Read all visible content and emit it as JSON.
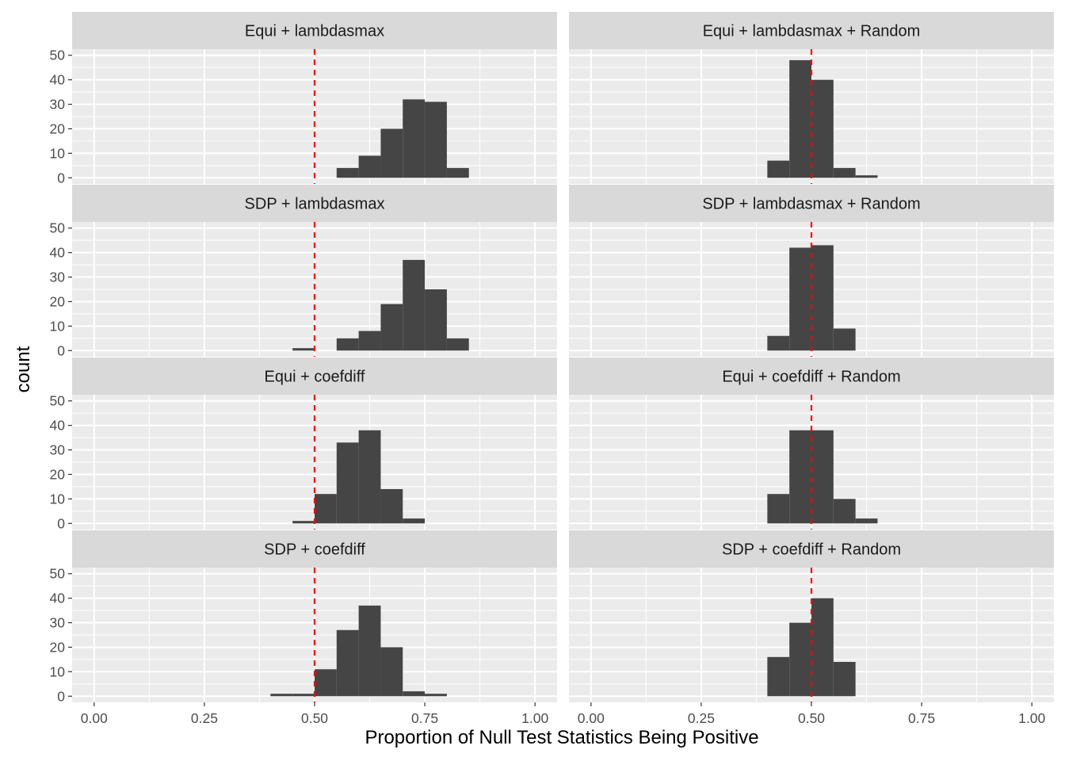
{
  "chart_data": {
    "type": "bar",
    "facet_layout": {
      "rows": 4,
      "cols": 2
    },
    "xlabel": "Proportion of Null Test Statistics Being Positive",
    "ylabel": "count",
    "xlim": [
      -0.05,
      1.05
    ],
    "ylim": [
      -2.5,
      52.5
    ],
    "x_ticks": [
      0.0,
      0.25,
      0.5,
      0.75,
      1.0
    ],
    "x_tick_labels": [
      "0.00",
      "0.25",
      "0.50",
      "0.75",
      "1.00"
    ],
    "y_ticks": [
      0,
      10,
      20,
      30,
      40,
      50
    ],
    "y_tick_labels": [
      "0",
      "10",
      "20",
      "30",
      "40",
      "50"
    ],
    "bin_width": 0.05,
    "reference_line": {
      "x": 0.5,
      "style": "dashed",
      "color": "#ff0000"
    },
    "colors": {
      "panel_bg": "#ebebeb",
      "strip_bg": "#d9d9d9",
      "bar": "#454545",
      "grid": "#ffffff"
    },
    "panels": [
      {
        "title": "Equi + lambdasmax",
        "bins": [
          {
            "x": 0.575,
            "count": 4
          },
          {
            "x": 0.625,
            "count": 9
          },
          {
            "x": 0.675,
            "count": 20
          },
          {
            "x": 0.725,
            "count": 32
          },
          {
            "x": 0.775,
            "count": 31
          },
          {
            "x": 0.825,
            "count": 4
          }
        ]
      },
      {
        "title": "Equi + lambdasmax + Random",
        "bins": [
          {
            "x": 0.425,
            "count": 7
          },
          {
            "x": 0.475,
            "count": 48
          },
          {
            "x": 0.525,
            "count": 40
          },
          {
            "x": 0.575,
            "count": 4
          },
          {
            "x": 0.625,
            "count": 1
          }
        ]
      },
      {
        "title": "SDP + lambdasmax",
        "bins": [
          {
            "x": 0.475,
            "count": 1
          },
          {
            "x": 0.575,
            "count": 5
          },
          {
            "x": 0.625,
            "count": 8
          },
          {
            "x": 0.675,
            "count": 19
          },
          {
            "x": 0.725,
            "count": 37
          },
          {
            "x": 0.775,
            "count": 25
          },
          {
            "x": 0.825,
            "count": 5
          }
        ]
      },
      {
        "title": "SDP + lambdasmax + Random",
        "bins": [
          {
            "x": 0.425,
            "count": 6
          },
          {
            "x": 0.475,
            "count": 42
          },
          {
            "x": 0.525,
            "count": 43
          },
          {
            "x": 0.575,
            "count": 9
          }
        ]
      },
      {
        "title": "Equi + coefdiff",
        "bins": [
          {
            "x": 0.475,
            "count": 1
          },
          {
            "x": 0.525,
            "count": 12
          },
          {
            "x": 0.575,
            "count": 33
          },
          {
            "x": 0.625,
            "count": 38
          },
          {
            "x": 0.675,
            "count": 14
          },
          {
            "x": 0.725,
            "count": 2
          }
        ]
      },
      {
        "title": "Equi + coefdiff + Random",
        "bins": [
          {
            "x": 0.425,
            "count": 12
          },
          {
            "x": 0.475,
            "count": 38
          },
          {
            "x": 0.525,
            "count": 38
          },
          {
            "x": 0.575,
            "count": 10
          },
          {
            "x": 0.625,
            "count": 2
          }
        ]
      },
      {
        "title": "SDP + coefdiff",
        "bins": [
          {
            "x": 0.425,
            "count": 1
          },
          {
            "x": 0.475,
            "count": 1
          },
          {
            "x": 0.525,
            "count": 11
          },
          {
            "x": 0.575,
            "count": 27
          },
          {
            "x": 0.625,
            "count": 37
          },
          {
            "x": 0.675,
            "count": 20
          },
          {
            "x": 0.725,
            "count": 2
          },
          {
            "x": 0.775,
            "count": 1
          }
        ]
      },
      {
        "title": "SDP + coefdiff + Random",
        "bins": [
          {
            "x": 0.425,
            "count": 16
          },
          {
            "x": 0.475,
            "count": 30
          },
          {
            "x": 0.525,
            "count": 40
          },
          {
            "x": 0.575,
            "count": 14
          }
        ]
      }
    ]
  }
}
